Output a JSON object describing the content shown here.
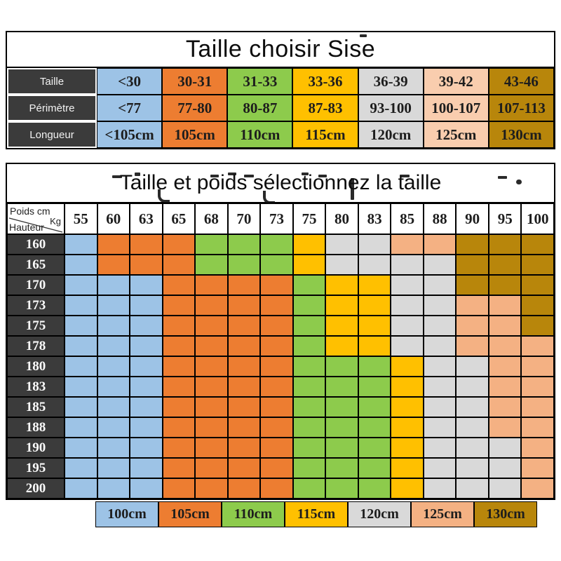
{
  "colors": {
    "B": "#9DC3E6",
    "O": "#ED7D31",
    "G": "#8DCB4C",
    "Y": "#FFC000",
    "S": "#D9D9D9",
    "P": "#F4B183",
    "L": "#F9CDAE",
    "D": "#B8860B",
    "header_dark": "#3B3B3B",
    "border": "#000000"
  },
  "size_table": {
    "title": "Taille choisir Sise",
    "column_colors": [
      "B",
      "O",
      "G",
      "Y",
      "S",
      "L",
      "D"
    ],
    "rows": [
      {
        "label": "Taille",
        "values": [
          "<30",
          "30-31",
          "31-33",
          "33-36",
          "36-39",
          "39-42",
          "43-46"
        ]
      },
      {
        "label": "Périmètre",
        "values": [
          "<77",
          "77-80",
          "80-87",
          "87-83",
          "93-100",
          "100-107",
          "107-113"
        ]
      },
      {
        "label": "Longueur",
        "values": [
          "<105cm",
          "105cm",
          "110cm",
          "115cm",
          "120cm",
          "125cm",
          "130cm"
        ]
      }
    ]
  },
  "matrix_table": {
    "title": "Taille et poids sélectionnez la taille",
    "corner": {
      "top": "Poids cm",
      "unit": "Kg",
      "bottom": "Hauteur"
    },
    "weights": [
      "55",
      "60",
      "63",
      "65",
      "68",
      "70",
      "73",
      "75",
      "80",
      "83",
      "85",
      "88",
      "90",
      "95",
      "100"
    ],
    "heights": [
      "160",
      "165",
      "170",
      "173",
      "175",
      "178",
      "180",
      "183",
      "185",
      "188",
      "190",
      "195",
      "200"
    ],
    "cells": [
      [
        "B",
        "O",
        "O",
        "O",
        "G",
        "G",
        "G",
        "Y",
        "S",
        "S",
        "P",
        "P",
        "D",
        "D",
        "D"
      ],
      [
        "B",
        "O",
        "O",
        "O",
        "G",
        "G",
        "G",
        "Y",
        "S",
        "S",
        "S",
        "S",
        "D",
        "D",
        "D"
      ],
      [
        "B",
        "B",
        "B",
        "O",
        "O",
        "O",
        "O",
        "G",
        "Y",
        "Y",
        "S",
        "S",
        "D",
        "D",
        "D"
      ],
      [
        "B",
        "B",
        "B",
        "O",
        "O",
        "O",
        "O",
        "G",
        "Y",
        "Y",
        "S",
        "S",
        "P",
        "P",
        "D"
      ],
      [
        "B",
        "B",
        "B",
        "O",
        "O",
        "O",
        "O",
        "G",
        "Y",
        "Y",
        "S",
        "S",
        "P",
        "P",
        "D"
      ],
      [
        "B",
        "B",
        "B",
        "O",
        "O",
        "O",
        "O",
        "G",
        "Y",
        "Y",
        "S",
        "S",
        "P",
        "P",
        "P"
      ],
      [
        "B",
        "B",
        "B",
        "O",
        "O",
        "O",
        "O",
        "G",
        "G",
        "G",
        "Y",
        "S",
        "S",
        "P",
        "P"
      ],
      [
        "B",
        "B",
        "B",
        "O",
        "O",
        "O",
        "O",
        "G",
        "G",
        "G",
        "Y",
        "S",
        "S",
        "P",
        "P"
      ],
      [
        "B",
        "B",
        "B",
        "O",
        "O",
        "O",
        "O",
        "G",
        "G",
        "G",
        "Y",
        "S",
        "S",
        "P",
        "P"
      ],
      [
        "B",
        "B",
        "B",
        "O",
        "O",
        "O",
        "O",
        "G",
        "G",
        "G",
        "Y",
        "S",
        "S",
        "P",
        "P"
      ],
      [
        "B",
        "B",
        "B",
        "O",
        "O",
        "O",
        "O",
        "G",
        "G",
        "G",
        "Y",
        "S",
        "S",
        "S",
        "P"
      ],
      [
        "B",
        "B",
        "B",
        "O",
        "O",
        "O",
        "O",
        "G",
        "G",
        "G",
        "Y",
        "S",
        "S",
        "S",
        "P"
      ],
      [
        "B",
        "B",
        "B",
        "O",
        "O",
        "O",
        "O",
        "G",
        "G",
        "G",
        "Y",
        "S",
        "S",
        "S",
        "P"
      ]
    ]
  },
  "legend": {
    "items": [
      {
        "label": "100cm",
        "color": "B"
      },
      {
        "label": "105cm",
        "color": "O"
      },
      {
        "label": "110cm",
        "color": "G"
      },
      {
        "label": "115cm",
        "color": "Y"
      },
      {
        "label": "120cm",
        "color": "S"
      },
      {
        "label": "125cm",
        "color": "P"
      },
      {
        "label": "130cm",
        "color": "D"
      }
    ]
  },
  "chart_data": [
    {
      "type": "table",
      "title": "Taille choisir Sise",
      "row_headers": [
        "Taille",
        "Périmètre",
        "Longueur"
      ],
      "rows": [
        [
          "<30",
          "30-31",
          "31-33",
          "33-36",
          "36-39",
          "39-42",
          "43-46"
        ],
        [
          "<77",
          "77-80",
          "80-87",
          "87-83",
          "93-100",
          "100-107",
          "107-113"
        ],
        [
          "<105cm",
          "105cm",
          "110cm",
          "115cm",
          "120cm",
          "125cm",
          "130cm"
        ]
      ]
    },
    {
      "type": "heatmap",
      "title": "Taille et poids sélectionnez la taille",
      "xlabel": "Poids Kg",
      "ylabel": "Hauteur cm",
      "x": [
        55,
        60,
        63,
        65,
        68,
        70,
        73,
        75,
        80,
        83,
        85,
        88,
        90,
        95,
        100
      ],
      "y": [
        160,
        165,
        170,
        173,
        175,
        178,
        180,
        183,
        185,
        188,
        190,
        195,
        200
      ],
      "values_cm": [
        [
          100,
          105,
          105,
          105,
          110,
          110,
          110,
          115,
          120,
          120,
          125,
          125,
          130,
          130,
          130
        ],
        [
          100,
          105,
          105,
          105,
          110,
          110,
          110,
          115,
          120,
          120,
          120,
          120,
          130,
          130,
          130
        ],
        [
          100,
          100,
          100,
          105,
          105,
          105,
          105,
          110,
          115,
          115,
          120,
          120,
          130,
          130,
          130
        ],
        [
          100,
          100,
          100,
          105,
          105,
          105,
          105,
          110,
          115,
          115,
          120,
          120,
          125,
          125,
          130
        ],
        [
          100,
          100,
          100,
          105,
          105,
          105,
          105,
          110,
          115,
          115,
          120,
          120,
          125,
          125,
          130
        ],
        [
          100,
          100,
          100,
          105,
          105,
          105,
          105,
          110,
          115,
          115,
          120,
          120,
          125,
          125,
          125
        ],
        [
          100,
          100,
          100,
          105,
          105,
          105,
          105,
          110,
          110,
          110,
          115,
          120,
          120,
          125,
          125
        ],
        [
          100,
          100,
          100,
          105,
          105,
          105,
          105,
          110,
          110,
          110,
          115,
          120,
          120,
          125,
          125
        ],
        [
          100,
          100,
          100,
          105,
          105,
          105,
          105,
          110,
          110,
          110,
          115,
          120,
          120,
          125,
          125
        ],
        [
          100,
          100,
          100,
          105,
          105,
          105,
          105,
          110,
          110,
          110,
          115,
          120,
          120,
          125,
          125
        ],
        [
          100,
          100,
          100,
          105,
          105,
          105,
          105,
          110,
          110,
          110,
          115,
          120,
          120,
          120,
          125
        ],
        [
          100,
          100,
          100,
          105,
          105,
          105,
          105,
          110,
          110,
          110,
          115,
          120,
          120,
          120,
          125
        ],
        [
          100,
          100,
          100,
          105,
          105,
          105,
          105,
          110,
          110,
          110,
          115,
          120,
          120,
          120,
          125
        ]
      ],
      "legend_position": "bottom",
      "legend": [
        "100cm",
        "105cm",
        "110cm",
        "115cm",
        "120cm",
        "125cm",
        "130cm"
      ]
    }
  ]
}
